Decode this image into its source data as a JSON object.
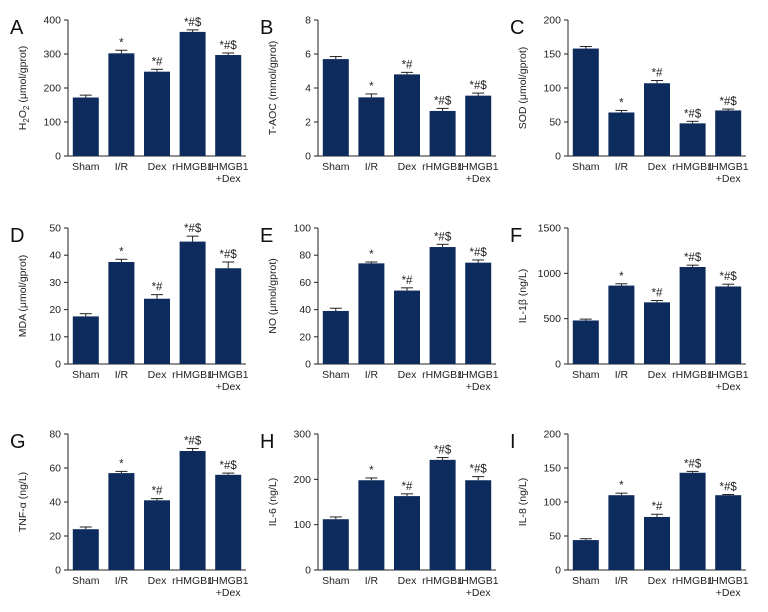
{
  "bar_color": "#0d2b5c",
  "axis_color": "#222222",
  "chart_data": [
    {
      "panel": "A",
      "type": "bar",
      "ylabel_parts": [
        {
          "t": "H"
        },
        {
          "t": "2",
          "sub": true
        },
        {
          "t": "O"
        },
        {
          "t": "2",
          "sub": true
        },
        {
          "t": " (μmol/gprot)"
        }
      ],
      "ylim": [
        0,
        400
      ],
      "yticks": [
        0,
        100,
        200,
        300,
        400
      ],
      "categories": [
        [
          "Sham"
        ],
        [
          "I/R"
        ],
        [
          "Dex"
        ],
        [
          "rHMGB1"
        ],
        [
          "rHMGB1",
          "+Dex"
        ]
      ],
      "values": [
        172,
        302,
        248,
        365,
        297
      ],
      "errors": [
        7,
        9,
        7,
        6,
        6
      ],
      "labels": [
        "",
        "*",
        "*#",
        "*#$",
        "*#$"
      ]
    },
    {
      "panel": "B",
      "type": "bar",
      "ylabel_parts": [
        {
          "t": "T-AOC (mmol/gprot)"
        }
      ],
      "ylim": [
        0,
        8
      ],
      "yticks": [
        0,
        2,
        4,
        6,
        8
      ],
      "categories": [
        [
          "Sham"
        ],
        [
          "I/R"
        ],
        [
          "Dex"
        ],
        [
          "rHMGB1"
        ],
        [
          "rHMGB1",
          "+Dex"
        ]
      ],
      "values": [
        5.7,
        3.45,
        4.8,
        2.65,
        3.55
      ],
      "errors": [
        0.15,
        0.2,
        0.12,
        0.15,
        0.15
      ],
      "labels": [
        "",
        "*",
        "*#",
        "*#$",
        "*#$"
      ]
    },
    {
      "panel": "C",
      "type": "bar",
      "ylabel_parts": [
        {
          "t": "SOD (μmol/gprot)"
        }
      ],
      "ylim": [
        0,
        200
      ],
      "yticks": [
        0,
        50,
        100,
        150,
        200
      ],
      "categories": [
        [
          "Sham"
        ],
        [
          "I/R"
        ],
        [
          "Dex"
        ],
        [
          "rHMGB1"
        ],
        [
          "rHMGB1",
          "+Dex"
        ]
      ],
      "values": [
        158,
        64,
        107,
        48,
        67
      ],
      "errors": [
        3,
        3,
        4,
        3,
        2
      ],
      "labels": [
        "",
        "*",
        "*#",
        "*#$",
        "*#$"
      ]
    },
    {
      "panel": "D",
      "type": "bar",
      "ylabel_parts": [
        {
          "t": "MDA (μmol/gprot)"
        }
      ],
      "ylim": [
        0,
        50
      ],
      "yticks": [
        0,
        10,
        20,
        30,
        40,
        50
      ],
      "categories": [
        [
          "Sham"
        ],
        [
          "I/R"
        ],
        [
          "Dex"
        ],
        [
          "rHMGB1"
        ],
        [
          "rHMGB1",
          "+Dex"
        ]
      ],
      "values": [
        17.5,
        37.5,
        24,
        45,
        35.2
      ],
      "errors": [
        1,
        1,
        1.5,
        2,
        2.3
      ],
      "labels": [
        "",
        "*",
        "*#",
        "*#$",
        "*#$"
      ]
    },
    {
      "panel": "E",
      "type": "bar",
      "ylabel_parts": [
        {
          "t": "NO (μmol/gprot)"
        }
      ],
      "ylim": [
        0,
        100
      ],
      "yticks": [
        0,
        20,
        40,
        60,
        80,
        100
      ],
      "categories": [
        [
          "Sham"
        ],
        [
          "I/R"
        ],
        [
          "Dex"
        ],
        [
          "rHMGB1"
        ],
        [
          "rHMGB1",
          "+Dex"
        ]
      ],
      "values": [
        39,
        74,
        54,
        86,
        74.5
      ],
      "errors": [
        2,
        1,
        2,
        2,
        2
      ],
      "labels": [
        "",
        "*",
        "*#",
        "*#$",
        "*#$"
      ]
    },
    {
      "panel": "F",
      "type": "bar",
      "ylabel_parts": [
        {
          "t": "IL-1β (ng/L)"
        }
      ],
      "ylim": [
        0,
        1500
      ],
      "yticks": [
        0,
        500,
        1000,
        1500
      ],
      "categories": [
        [
          "Sham"
        ],
        [
          "I/R"
        ],
        [
          "Dex"
        ],
        [
          "rHMGB1"
        ],
        [
          "rHMGB1",
          "+Dex"
        ]
      ],
      "values": [
        480,
        865,
        680,
        1070,
        855
      ],
      "errors": [
        15,
        20,
        20,
        20,
        25
      ],
      "labels": [
        "",
        "*",
        "*#",
        "*#$",
        "*#$"
      ]
    },
    {
      "panel": "G",
      "type": "bar",
      "ylabel_parts": [
        {
          "t": "TNF-α (ng/L)"
        }
      ],
      "ylim": [
        0,
        80
      ],
      "yticks": [
        0,
        20,
        40,
        60,
        80
      ],
      "categories": [
        [
          "Sham"
        ],
        [
          "I/R"
        ],
        [
          "Dex"
        ],
        [
          "rHMGB1"
        ],
        [
          "rHMGB1",
          "+Dex"
        ]
      ],
      "values": [
        24,
        57,
        41,
        70,
        56
      ],
      "errors": [
        1.3,
        1,
        1,
        1.5,
        1
      ],
      "labels": [
        "",
        "*",
        "*#",
        "*#$",
        "*#$"
      ]
    },
    {
      "panel": "H",
      "type": "bar",
      "ylabel_parts": [
        {
          "t": "IL-6 (ng/L)"
        }
      ],
      "ylim": [
        0,
        300
      ],
      "yticks": [
        0,
        100,
        200,
        300
      ],
      "categories": [
        [
          "Sham"
        ],
        [
          "I/R"
        ],
        [
          "Dex"
        ],
        [
          "rHMGB1"
        ],
        [
          "rHMGB1",
          "+Dex"
        ]
      ],
      "values": [
        112,
        198,
        163,
        243,
        198
      ],
      "errors": [
        5,
        5,
        5,
        5,
        8
      ],
      "labels": [
        "",
        "*",
        "*#",
        "*#$",
        "*#$"
      ]
    },
    {
      "panel": "I",
      "type": "bar",
      "ylabel_parts": [
        {
          "t": "IL-8 (ng/L)"
        }
      ],
      "ylim": [
        0,
        200
      ],
      "yticks": [
        0,
        50,
        100,
        150,
        200
      ],
      "categories": [
        [
          "Sham"
        ],
        [
          "I/R"
        ],
        [
          "Dex"
        ],
        [
          "rHMGB1"
        ],
        [
          "rHMGB1",
          "+Dex"
        ]
      ],
      "values": [
        44,
        110,
        78,
        143,
        110
      ],
      "errors": [
        2,
        3,
        4,
        2,
        1
      ],
      "labels": [
        "",
        "*",
        "*#",
        "*#$",
        "*#$"
      ]
    }
  ]
}
